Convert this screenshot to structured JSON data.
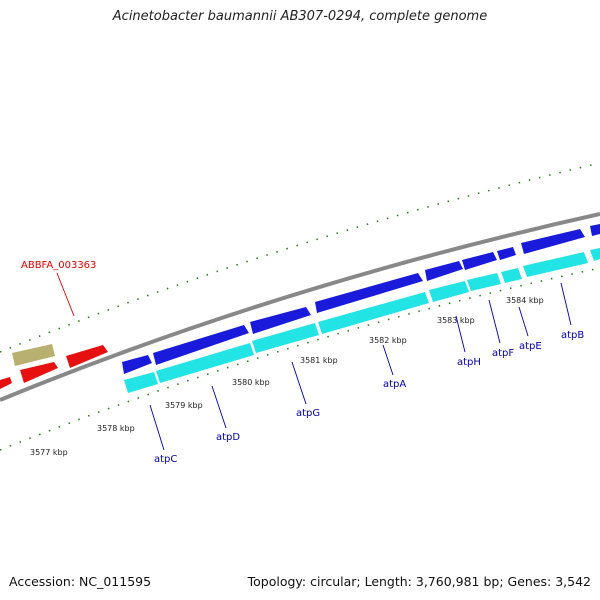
{
  "title": "Acinetobacter baumannii AB307-0294, complete genome",
  "footer": {
    "accession": "Accession: NC_011595",
    "summary": "Topology: circular; Length: 3,760,981 bp; Genes: 3,542"
  },
  "ticks": [
    {
      "label": "3577 kbp"
    },
    {
      "label": "3578 kbp"
    },
    {
      "label": "3579 kbp"
    },
    {
      "label": "3580 kbp"
    },
    {
      "label": "3581 kbp"
    },
    {
      "label": "3582 kbp"
    },
    {
      "label": "3583 kbp"
    },
    {
      "label": "3584 kbp"
    }
  ],
  "genes": [
    {
      "name": "ABBFA_003363",
      "color": "#dd0000"
    },
    {
      "name": "atpC",
      "color": "#0000aa"
    },
    {
      "name": "atpD",
      "color": "#0000aa"
    },
    {
      "name": "atpG",
      "color": "#0000aa"
    },
    {
      "name": "atpA",
      "color": "#0000aa"
    },
    {
      "name": "atpH",
      "color": "#0000aa"
    },
    {
      "name": "atpF",
      "color": "#0000aa"
    },
    {
      "name": "atpE",
      "color": "#0000aa"
    },
    {
      "name": "atpB",
      "color": "#0000aa"
    }
  ],
  "colors": {
    "gene_blue": "#1a1adb",
    "gene_cyan": "#22e4e4",
    "gene_red": "#e61010",
    "gene_olive": "#b8b070",
    "backbone": "#888888",
    "tick_green": "#2e7d1f"
  }
}
